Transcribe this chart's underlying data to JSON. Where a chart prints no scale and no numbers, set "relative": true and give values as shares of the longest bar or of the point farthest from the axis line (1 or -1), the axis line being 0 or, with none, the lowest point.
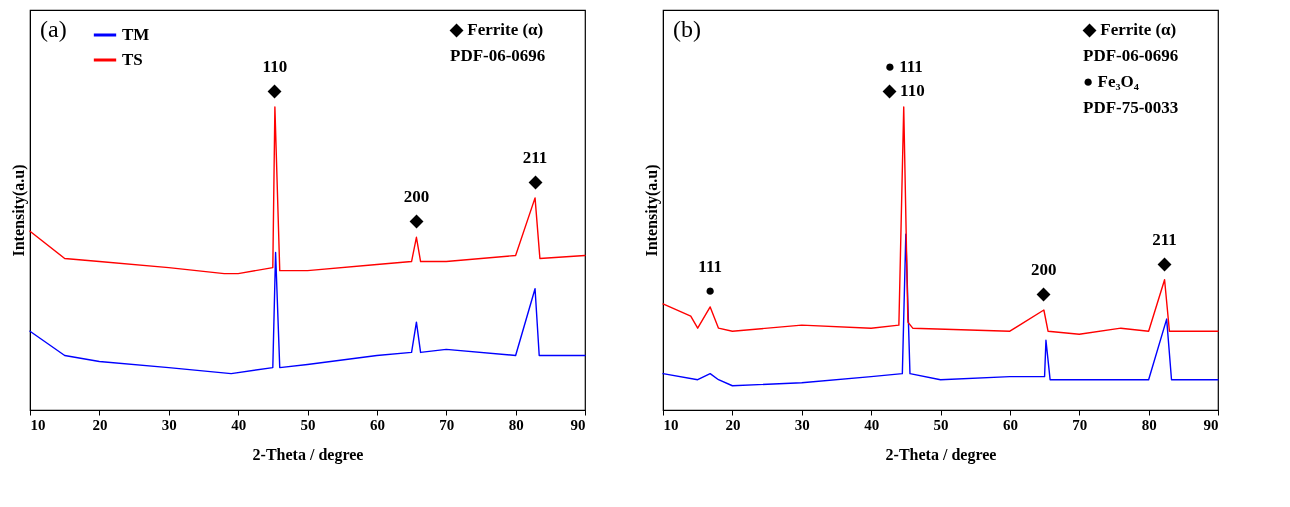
{
  "chart_data": [
    {
      "type": "line",
      "title": "(a)",
      "xlabel": "2-Theta / degree",
      "ylabel": "Intensity(a.u)",
      "relative": true,
      "xlim": [
        10,
        90
      ],
      "xticks": [
        10,
        20,
        30,
        40,
        50,
        60,
        70,
        80,
        90
      ],
      "grid": false,
      "legend": "top left",
      "series": [
        {
          "name": "TM",
          "color": "#0000ff",
          "x": [
            10,
            15,
            20,
            30,
            39,
            45,
            45.4,
            46,
            50,
            60,
            65,
            65.7,
            66.3,
            70,
            80,
            82.8,
            83.4,
            90
          ],
          "values": [
            0.26,
            0.18,
            0.16,
            0.14,
            0.12,
            0.14,
            0.52,
            0.14,
            0.15,
            0.18,
            0.19,
            0.29,
            0.19,
            0.2,
            0.18,
            0.4,
            0.18,
            0.18
          ]
        },
        {
          "name": "TS",
          "color": "#ff0000",
          "x": [
            10,
            15,
            20,
            30,
            38,
            40,
            45,
            45.3,
            46,
            50,
            60,
            65,
            65.7,
            66.3,
            70,
            80,
            82.8,
            83.5,
            90
          ],
          "values": [
            0.59,
            0.5,
            0.49,
            0.47,
            0.45,
            0.45,
            0.47,
            1.0,
            0.46,
            0.46,
            0.48,
            0.49,
            0.57,
            0.49,
            0.49,
            0.51,
            0.7,
            0.5,
            0.51
          ]
        }
      ],
      "annotations": [
        "◆ Ferrite (α)",
        "PDF-06-0696",
        {
          "text": "◆",
          "x": 45.3,
          "y": 1.0
        },
        {
          "text": "110",
          "x": 45.3,
          "y": 1.0
        },
        {
          "text": "◆",
          "x": 65.7,
          "y": 0.57
        },
        {
          "text": "200",
          "x": 65.7,
          "y": 0.57
        },
        {
          "text": "◆",
          "x": 82.8,
          "y": 0.7
        },
        {
          "text": "211",
          "x": 82.8,
          "y": 0.7
        }
      ]
    },
    {
      "type": "line",
      "title": "(b)",
      "xlabel": "2-Theta / degree",
      "ylabel": "Intensity(a.u)",
      "relative": true,
      "xlim": [
        10,
        90
      ],
      "xticks": [
        10,
        20,
        30,
        40,
        50,
        60,
        70,
        80,
        90
      ],
      "grid": false,
      "legend": "top left",
      "series": [
        {
          "name": "TM",
          "color": "#0000ff",
          "x": [
            10,
            15,
            16.8,
            18,
            20,
            30,
            40,
            44.5,
            45,
            45.6,
            50,
            60,
            65,
            65.2,
            65.8,
            70,
            80,
            82.6,
            83.3,
            90
          ],
          "values": [
            0.12,
            0.1,
            0.12,
            0.1,
            0.08,
            0.09,
            0.11,
            0.12,
            0.58,
            0.12,
            0.1,
            0.11,
            0.11,
            0.23,
            0.1,
            0.1,
            0.1,
            0.3,
            0.1,
            0.1
          ]
        },
        {
          "name": "TS",
          "color": "#ff0000",
          "x": [
            10,
            14,
            15,
            16.8,
            18,
            20,
            30,
            40,
            44,
            44.7,
            45.3,
            46,
            60,
            64.9,
            65.5,
            70,
            76,
            80,
            82.3,
            83,
            90
          ],
          "values": [
            0.35,
            0.31,
            0.27,
            0.34,
            0.27,
            0.26,
            0.28,
            0.27,
            0.28,
            1.0,
            0.29,
            0.27,
            0.26,
            0.33,
            0.26,
            0.25,
            0.27,
            0.26,
            0.43,
            0.26,
            0.26
          ]
        }
      ],
      "annotations": [
        "◆ Ferrite (α)",
        "PDF-06-0696",
        "● Fe₃O₄",
        "PDF-75-0033",
        {
          "text": "●",
          "x": 16.8,
          "y": 0.34
        },
        {
          "text": "111",
          "x": 16.8,
          "y": 0.34
        },
        {
          "text": "◆ 110",
          "x": 44.7,
          "y": 1.0
        },
        {
          "text": "● 111",
          "x": 44.7,
          "y": 1.0
        },
        {
          "text": "◆",
          "x": 64.9,
          "y": 0.33
        },
        {
          "text": "200",
          "x": 64.9,
          "y": 0.33
        },
        {
          "text": "◆",
          "x": 82.3,
          "y": 0.43
        },
        {
          "text": "211",
          "x": 82.3,
          "y": 0.43
        }
      ]
    }
  ]
}
